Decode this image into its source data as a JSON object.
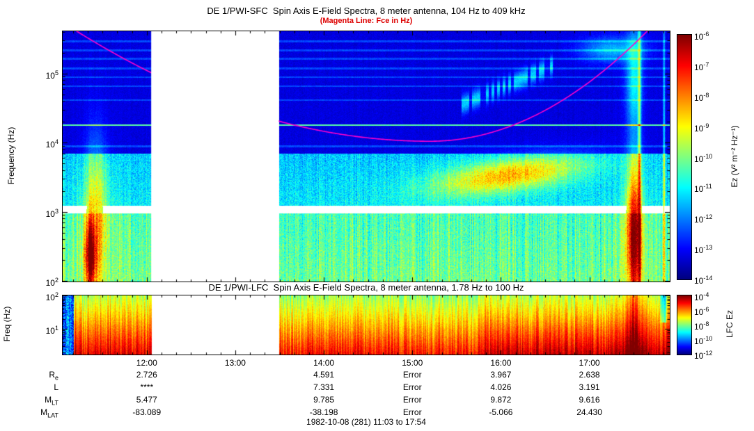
{
  "page": {
    "background": "#ffffff",
    "footer": "1982-10-08 (281) 11:03 to 17:54"
  },
  "chart_data": [
    {
      "type": "heatmap",
      "panel": "SFC",
      "title": "DE 1/PWI-SFC  Spin Axis E-Field Spectra, 8 meter antenna, 104 Hz to 409 kHz",
      "subtitle": "(Magenta Line: Fce in Hz)",
      "subtitle_color": "#dd0000",
      "ylabel": "Frequency (Hz)",
      "y_scale": "log",
      "y_range_hz": [
        100,
        409000
      ],
      "y_tick_exponents": [
        2,
        3,
        4,
        5
      ],
      "time_start": "11:03",
      "time_end": "17:54",
      "time_start_hours": 11.05,
      "time_end_hours": 17.9,
      "x_tick_labels": [
        "12:00",
        "13:00",
        "14:00",
        "15:00",
        "16:00",
        "17:00"
      ],
      "x_tick_hours": [
        12,
        13,
        14,
        15,
        16,
        17
      ],
      "data_gap_hours": [
        12.05,
        13.49
      ],
      "white_band_log10hz": [
        2.98,
        3.09
      ],
      "interference_lines_log10hz": [
        3.95,
        4.26,
        4.62,
        4.82,
        4.95,
        5.08,
        5.22,
        5.34,
        5.47
      ],
      "colorbar": {
        "label": "Ez (V² m⁻² Hz⁻¹)",
        "tick_exponents": [
          -6,
          -7,
          -8,
          -9,
          -10,
          -11,
          -12,
          -13,
          -14
        ],
        "palette": "jet",
        "value_range_log10": [
          -14,
          -6
        ]
      },
      "overlay_line": {
        "name": "Fce",
        "color": "#ff00cc",
        "vertex_hours": 15.2,
        "vertex_log10hz": 4.02,
        "curvature_left": 0.1,
        "curvature_right": 0.265
      },
      "events": [
        {
          "name": "morning-noise-burst",
          "t_h": 11.42,
          "t_sigma": 0.13,
          "logf": 3.0,
          "f_sigma": 1.05,
          "amp": 2.3
        },
        {
          "name": "morning-burst-red-core",
          "t_h": 11.36,
          "t_sigma": 0.07,
          "logf": 2.35,
          "f_sigma": 0.5,
          "amp": 3.6
        },
        {
          "name": "evening-storm-low",
          "t_h": 17.5,
          "t_sigma": 0.09,
          "logf": 2.7,
          "f_sigma": 1.0,
          "amp": 4.6
        },
        {
          "name": "evening-storm-high",
          "t_h": 17.5,
          "t_sigma": 0.09,
          "logf": 4.9,
          "f_sigma": 0.75,
          "amp": 2.2
        },
        {
          "name": "broadband-spike",
          "t_h": 17.56,
          "t_sigma": 0.018,
          "logf": 3.8,
          "f_sigma": 3.0,
          "amp": 2.6
        },
        {
          "name": "edge-spike",
          "t_h": 17.84,
          "t_sigma": 0.012,
          "logf": 3.8,
          "f_sigma": 3.0,
          "amp": 2.0
        },
        {
          "name": "topright-emission",
          "t_h": 17.25,
          "t_sigma": 0.35,
          "logf": 5.35,
          "f_sigma": 0.18,
          "amp": 1.7
        }
      ],
      "rising_band": {
        "t_min": 14.3,
        "t_center": 16.1,
        "t_sigma": 0.85,
        "amp": 2.9,
        "logf_base": 3.35,
        "logf_slope": 0.17,
        "f_sigma": 0.24
      },
      "akr_band": {
        "t_min": 15.55,
        "t_max": 16.6,
        "logf_at_tmin": 4.55,
        "logf_slope": 0.55,
        "f_sigma": 0.13,
        "amp": 1.9
      }
    },
    {
      "type": "heatmap",
      "panel": "LFC",
      "title": "DE 1/PWI-LFC  Spin Axis E-Field Spectra, 8 meter antenna, 1.78 Hz to 100 Hz",
      "ylabel": "Freq (Hz)",
      "y_scale": "log",
      "y_range_hz": [
        1.78,
        100
      ],
      "y_tick_exponents": [
        1,
        2
      ],
      "colorbar": {
        "label": "LFC Ez",
        "tick_exponents": [
          -4,
          -6,
          -8,
          -10,
          -12
        ],
        "palette": "jet",
        "value_range_log10": [
          -12,
          -4
        ]
      }
    }
  ],
  "ephemeris": {
    "column_hours": [
      12,
      14,
      15,
      16,
      17
    ],
    "rows": [
      {
        "label": "R",
        "label_sub": "e",
        "values": [
          "2.726",
          "4.591",
          "Error",
          "3.967",
          "2.638"
        ]
      },
      {
        "label": "L",
        "label_sub": "",
        "values": [
          "****",
          "7.331",
          "Error",
          "4.026",
          "3.191"
        ]
      },
      {
        "label": "M",
        "label_sub": "LT",
        "values": [
          "5.477",
          "9.785",
          "Error",
          "9.872",
          "9.616"
        ]
      },
      {
        "label": "M",
        "label_sub": "LAT",
        "values": [
          "-83.089",
          "-38.198",
          "Error",
          "-5.066",
          "24.430"
        ]
      }
    ]
  }
}
